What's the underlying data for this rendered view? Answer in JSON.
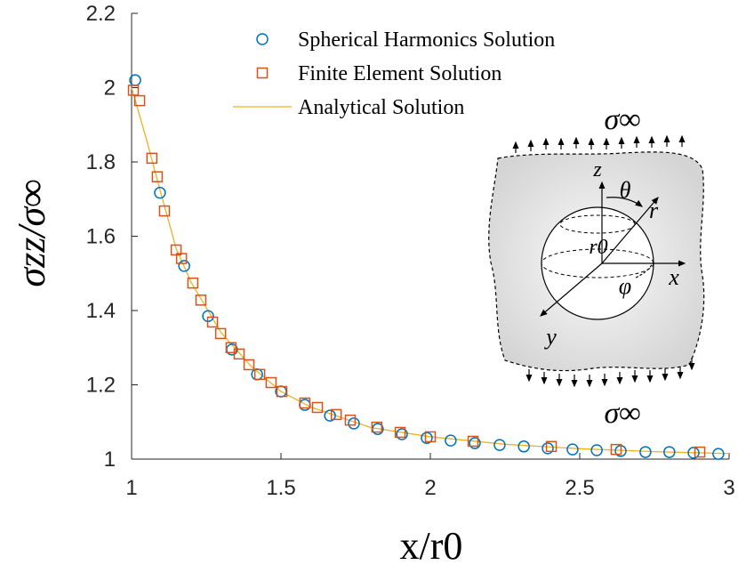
{
  "chart_data": {
    "type": "scatter",
    "xlabel": "x/r0",
    "ylabel": "σzz/σ∞",
    "xlim": [
      1,
      3
    ],
    "xticks": [
      1,
      1.5,
      2,
      2.5,
      3
    ],
    "ylim": [
      1,
      2.2
    ],
    "yticks": [
      1,
      1.2,
      1.4,
      1.6,
      1.8,
      2,
      2.2
    ],
    "series": [
      {
        "name": "Spherical Harmonics Solution",
        "color": "#0072BD",
        "marker": "circle",
        "x": [
          1.012,
          1.095,
          1.176,
          1.256,
          1.336,
          1.42,
          1.5,
          1.58,
          1.664,
          1.744,
          1.824,
          1.905,
          1.988,
          2.068,
          2.149,
          2.232,
          2.313,
          2.393,
          2.476,
          2.557,
          2.637,
          2.72,
          2.8,
          2.881,
          2.964
        ],
        "values": [
          2.02,
          1.717,
          1.52,
          1.385,
          1.295,
          1.228,
          1.182,
          1.146,
          1.117,
          1.096,
          1.081,
          1.067,
          1.057,
          1.05,
          1.043,
          1.038,
          1.034,
          1.029,
          1.026,
          1.024,
          1.022,
          1.019,
          1.019,
          1.017,
          1.014
        ]
      },
      {
        "name": "Finite Element Solution",
        "color": "#D95319",
        "marker": "square",
        "x": [
          1.006,
          1.027,
          1.068,
          1.086,
          1.11,
          1.149,
          1.167,
          1.205,
          1.232,
          1.271,
          1.298,
          1.333,
          1.36,
          1.393,
          1.429,
          1.467,
          1.503,
          1.58,
          1.622,
          1.685,
          1.732,
          1.821,
          1.899,
          2.0,
          2.143,
          2.405,
          2.622,
          2.902
        ],
        "values": [
          1.993,
          1.965,
          1.81,
          1.76,
          1.668,
          1.563,
          1.54,
          1.474,
          1.428,
          1.369,
          1.338,
          1.3,
          1.283,
          1.254,
          1.228,
          1.206,
          1.182,
          1.151,
          1.139,
          1.12,
          1.105,
          1.086,
          1.072,
          1.06,
          1.048,
          1.034,
          1.026,
          1.019
        ]
      },
      {
        "name": "Analytical Solution",
        "color": "#EDB120",
        "marker": "line",
        "x": [
          1,
          1.05,
          1.1,
          1.15,
          1.2,
          1.3,
          1.4,
          1.5,
          1.6,
          1.8,
          2,
          2.25,
          2.5,
          2.75,
          3
        ],
        "values": [
          2.0,
          1.86,
          1.71,
          1.565,
          1.475,
          1.34,
          1.25,
          1.182,
          1.14,
          1.085,
          1.06,
          1.04,
          1.028,
          1.02,
          1.015
        ]
      }
    ],
    "annotations": [
      "σ∞",
      "σ∞",
      "z",
      "θ",
      "r",
      "r0",
      "x",
      "φ",
      "y"
    ]
  }
}
